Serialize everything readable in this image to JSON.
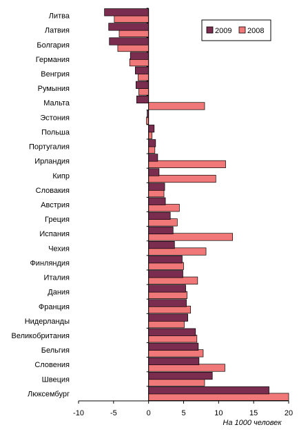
{
  "chart_data": {
    "type": "bar",
    "orientation": "horizontal",
    "categories": [
      "Литва",
      "Латвия",
      "Болгария",
      "Германия",
      "Венгрия",
      "Румыния",
      "Мальта",
      "Эстония",
      "Польша",
      "Португалия",
      "Ирландия",
      "Кипр",
      "Словакия",
      "Австрия",
      "Греция",
      "Испания",
      "Чехия",
      "Финляндия",
      "Италия",
      "Дания",
      "Франция",
      "Нидерланды",
      "Великобритания",
      "Бельгия",
      "Словения",
      "Швеция",
      "Люксембург"
    ],
    "series": [
      {
        "name": "2009",
        "color": "#7b2d4f",
        "values": [
          -6.3,
          -5.7,
          -5.6,
          -2.6,
          -1.9,
          -1.8,
          -1.7,
          -0.2,
          0.8,
          1.0,
          1.3,
          1.5,
          2.3,
          2.4,
          3.1,
          3.5,
          3.7,
          4.8,
          4.9,
          5.3,
          5.4,
          5.6,
          6.7,
          7.1,
          7.2,
          9.1,
          17.2
        ]
      },
      {
        "name": "2008",
        "color": "#f07878",
        "values": [
          -4.9,
          -4.2,
          -4.4,
          -2.7,
          -1.5,
          -1.4,
          8.0,
          -0.3,
          0.5,
          0.9,
          11.0,
          9.6,
          2.2,
          4.4,
          4.1,
          12.0,
          8.2,
          5.0,
          7.0,
          5.5,
          6.0,
          5.1,
          6.9,
          7.8,
          10.9,
          8.0,
          20.0
        ]
      }
    ],
    "xticks": [
      "-10",
      "-5",
      "0",
      "5",
      "10",
      "15",
      "20"
    ],
    "xlim": [
      -10,
      20
    ],
    "xlabel": "На 1000 человек",
    "legend": {
      "placement": "top-right",
      "entries": [
        "2009",
        "2008"
      ]
    },
    "grid": false
  }
}
